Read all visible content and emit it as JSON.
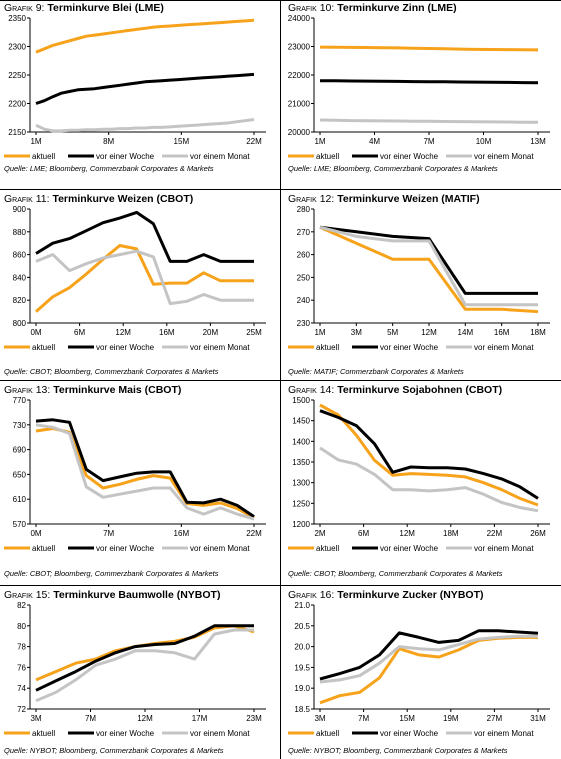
{
  "colors": {
    "aktuell": "#F7A21B",
    "woche": "#000000",
    "monat": "#C4C4C4"
  },
  "legend": {
    "aktuell": "aktuell",
    "woche": "vor einer Woche",
    "monat": "vor einem Monat"
  },
  "sources": {
    "s1": "Quelle: LME; Bloomberg, Commerzbank Corporates & Markets",
    "s2": "Quelle: CBOT; Bloomberg, Commerzbank Corporates & Markets",
    "s3": "Quelle: MATIF; Commerzbank Corporates & Markets",
    "s4": "Quelle: CBOT; Bloomberg, Commerzbank Corporates & Markets",
    "s5": "Quelle: CBOT; Bloomberg, Commerzbank Corporates & Markets",
    "s6": "Quelle: NYBOT; Bloomberg, Commerzbank Corporates & Markets",
    "s7": "Quelle: NYBOT; Bloomberg, Commerzbank Corporates & Markets"
  },
  "chart_data": [
    {
      "id": "g9",
      "type": "line",
      "title_prefix": "Grafik 9:",
      "title": "Terminkurve Blei (LME)",
      "xlabels": [
        "1M",
        "8M",
        "15M",
        "22M"
      ],
      "yticks": [
        "2350",
        "2300",
        "2250",
        "2200",
        "2150"
      ],
      "ylim": [
        2150,
        2350
      ],
      "series": [
        {
          "name": "aktuell",
          "x": [
            1,
            2,
            3,
            4,
            5,
            6,
            7,
            8,
            9,
            10,
            11,
            12,
            13,
            14,
            15,
            16,
            17,
            18,
            19,
            20,
            21,
            22,
            23,
            24,
            25,
            26,
            27
          ],
          "values": [
            2290,
            2296,
            2302,
            2306,
            2310,
            2314,
            2318,
            2320,
            2322,
            2324,
            2326,
            2328,
            2330,
            2332,
            2334,
            2335,
            2336,
            2337,
            2338,
            2339,
            2340,
            2341,
            2342,
            2343,
            2344,
            2345,
            2346
          ]
        },
        {
          "name": "vor einer Woche",
          "x": [
            1,
            2,
            3,
            4,
            5,
            6,
            7,
            8,
            9,
            10,
            11,
            12,
            13,
            14,
            15,
            16,
            17,
            18,
            19,
            20,
            21,
            22,
            23,
            24,
            25,
            26,
            27
          ],
          "values": [
            2200,
            2205,
            2212,
            2218,
            2221,
            2224,
            2225,
            2226,
            2228,
            2230,
            2232,
            2234,
            2236,
            2238,
            2239,
            2240,
            2241,
            2242,
            2243,
            2244,
            2245,
            2246,
            2247,
            2248,
            2249,
            2250,
            2251
          ]
        },
        {
          "name": "vor einem Monat",
          "x": [
            1,
            2,
            3,
            4,
            5,
            6,
            7,
            8,
            9,
            10,
            11,
            12,
            13,
            14,
            15,
            16,
            17,
            18,
            19,
            20,
            21,
            22,
            23,
            24,
            25,
            26,
            27
          ],
          "values": [
            2162,
            2155,
            2152,
            2152,
            2153,
            2153,
            2154,
            2154,
            2155,
            2155,
            2156,
            2156,
            2157,
            2157,
            2158,
            2158,
            2159,
            2160,
            2161,
            2162,
            2163,
            2164,
            2165,
            2166,
            2168,
            2170,
            2172
          ]
        }
      ]
    },
    {
      "id": "g10",
      "type": "line",
      "title_prefix": "Grafik 10:",
      "title": "Terminkurve Zinn (LME)",
      "xlabels": [
        "1M",
        "4M",
        "7M",
        "10M",
        "13M"
      ],
      "yticks": [
        "24000",
        "23000",
        "22000",
        "21000",
        "20000"
      ],
      "ylim": [
        20000,
        24000
      ],
      "series": [
        {
          "name": "aktuell",
          "x": [
            1,
            2,
            3,
            4,
            5,
            6,
            7,
            8,
            9,
            10,
            11,
            12,
            13,
            14,
            15
          ],
          "values": [
            22980,
            22975,
            22970,
            22965,
            22955,
            22950,
            22940,
            22930,
            22920,
            22910,
            22900,
            22895,
            22890,
            22885,
            22880
          ]
        },
        {
          "name": "vor einer Woche",
          "x": [
            1,
            2,
            3,
            4,
            5,
            6,
            7,
            8,
            9,
            10,
            11,
            12,
            13,
            14,
            15
          ],
          "values": [
            21800,
            21795,
            21790,
            21785,
            21780,
            21775,
            21770,
            21765,
            21760,
            21755,
            21750,
            21745,
            21740,
            21735,
            21730
          ]
        },
        {
          "name": "vor einem Monat",
          "x": [
            1,
            2,
            3,
            4,
            5,
            6,
            7,
            8,
            9,
            10,
            11,
            12,
            13,
            14,
            15
          ],
          "values": [
            20420,
            20410,
            20400,
            20395,
            20390,
            20385,
            20380,
            20375,
            20370,
            20365,
            20360,
            20355,
            20350,
            20345,
            20340
          ]
        }
      ]
    },
    {
      "id": "g11",
      "type": "line",
      "title_prefix": "Grafik 11:",
      "title": "Terminkurve Weizen (CBOT)",
      "xlabels": [
        "0M",
        "6M",
        "12M",
        "16M",
        "20M",
        "25M"
      ],
      "yticks": [
        "900",
        "880",
        "860",
        "840",
        "820",
        "800"
      ],
      "ylim": [
        800,
        900
      ],
      "series": [
        {
          "name": "aktuell",
          "x": [
            0,
            2,
            4,
            6,
            8,
            10,
            12,
            14,
            16,
            18,
            20,
            22,
            24,
            26
          ],
          "values": [
            810,
            823,
            831,
            843,
            856,
            868,
            865,
            834,
            835,
            835,
            844,
            837,
            837,
            837
          ]
        },
        {
          "name": "vor einer Woche",
          "x": [
            0,
            2,
            4,
            6,
            8,
            10,
            12,
            14,
            16,
            18,
            20,
            22,
            24,
            26
          ],
          "values": [
            861,
            870,
            874,
            881,
            888,
            892,
            897,
            887,
            854,
            854,
            860,
            854,
            854,
            854
          ]
        },
        {
          "name": "vor einem Monat",
          "x": [
            0,
            2,
            4,
            6,
            8,
            10,
            12,
            14,
            16,
            18,
            20,
            22,
            24,
            26
          ],
          "values": [
            854,
            860,
            846,
            852,
            857,
            860,
            863,
            858,
            817,
            819,
            825,
            820,
            820,
            820
          ]
        }
      ]
    },
    {
      "id": "g12",
      "type": "line",
      "title_prefix": "Grafik 12:",
      "title": "Terminkurve Weizen (MATIF)",
      "xlabels": [
        "1M",
        "3M",
        "5M",
        "12M",
        "14M",
        "16M",
        "18M"
      ],
      "yticks": [
        "280",
        "270",
        "260",
        "250",
        "240",
        "230"
      ],
      "ylim": [
        230,
        280
      ],
      "series": [
        {
          "name": "aktuell",
          "x": [
            1,
            2,
            3,
            4,
            5,
            6,
            7
          ],
          "values": [
            272,
            265,
            258,
            258,
            236,
            236,
            235
          ]
        },
        {
          "name": "vor einer Woche",
          "x": [
            1,
            2,
            3,
            4,
            5,
            6,
            7
          ],
          "values": [
            272,
            270,
            268,
            267,
            243,
            243,
            243
          ]
        },
        {
          "name": "vor einem Monat",
          "x": [
            1,
            2,
            3,
            4,
            5,
            6,
            7
          ],
          "values": [
            272,
            268,
            266,
            266,
            238,
            238,
            238
          ]
        }
      ]
    },
    {
      "id": "g13",
      "type": "line",
      "title_prefix": "Grafik 13:",
      "title": "Terminkurve Mais (CBOT)",
      "xlabels": [
        "0M",
        "7M",
        "16M",
        "22M"
      ],
      "yticks": [
        "770",
        "730",
        "690",
        "650",
        "610",
        "570"
      ],
      "ylim": [
        570,
        770
      ],
      "series": [
        {
          "name": "aktuell",
          "x": [
            0,
            2,
            4,
            6,
            8,
            10,
            12,
            14,
            16,
            18,
            20,
            22,
            24,
            26
          ],
          "values": [
            720,
            724,
            718,
            648,
            628,
            634,
            642,
            648,
            644,
            603,
            600,
            604,
            595,
            580
          ]
        },
        {
          "name": "vor einer Woche",
          "x": [
            0,
            2,
            4,
            6,
            8,
            10,
            12,
            14,
            16,
            18,
            20,
            22,
            24,
            26
          ],
          "values": [
            736,
            738,
            734,
            658,
            640,
            646,
            652,
            654,
            654,
            605,
            604,
            610,
            600,
            582
          ]
        },
        {
          "name": "vor einem Monat",
          "x": [
            0,
            2,
            4,
            6,
            8,
            10,
            12,
            14,
            16,
            18,
            20,
            22,
            24,
            26
          ],
          "values": [
            730,
            726,
            716,
            630,
            613,
            618,
            623,
            628,
            628,
            596,
            586,
            596,
            586,
            578
          ]
        }
      ]
    },
    {
      "id": "g14",
      "type": "line",
      "title_prefix": "Grafik 14:",
      "title": "Terminkurve Sojabohnen (CBOT)",
      "xlabels": [
        "2M",
        "6M",
        "12M",
        "18M",
        "22M",
        "26M"
      ],
      "yticks": [
        "1500",
        "1450",
        "1400",
        "1350",
        "1300",
        "1250",
        "1200"
      ],
      "ylim": [
        1200,
        1500
      ],
      "series": [
        {
          "name": "aktuell",
          "x": [
            2,
            4,
            6,
            8,
            10,
            12,
            14,
            16,
            18,
            20,
            22,
            24,
            26
          ],
          "values": [
            1488,
            1464,
            1415,
            1354,
            1318,
            1322,
            1320,
            1318,
            1314,
            1300,
            1283,
            1262,
            1246
          ]
        },
        {
          "name": "vor einer Woche",
          "x": [
            2,
            4,
            6,
            8,
            10,
            12,
            14,
            16,
            18,
            20,
            22,
            24,
            26
          ],
          "values": [
            1474,
            1458,
            1438,
            1394,
            1325,
            1338,
            1336,
            1336,
            1333,
            1322,
            1309,
            1290,
            1262
          ]
        },
        {
          "name": "vor einem Monat",
          "x": [
            2,
            4,
            6,
            8,
            10,
            12,
            14,
            16,
            18,
            20,
            22,
            24,
            26
          ],
          "values": [
            1384,
            1355,
            1345,
            1320,
            1283,
            1283,
            1280,
            1283,
            1288,
            1272,
            1252,
            1240,
            1232
          ]
        }
      ]
    },
    {
      "id": "g15",
      "type": "line",
      "title_prefix": "Grafik 15:",
      "title": "Terminkurve Baumwolle (NYBOT)",
      "xlabels": [
        "3M",
        "7M",
        "12M",
        "17M",
        "23M"
      ],
      "yticks": [
        "82",
        "80",
        "78",
        "76",
        "74",
        "72"
      ],
      "ylim": [
        72,
        82
      ],
      "series": [
        {
          "name": "aktuell",
          "x": [
            1,
            2,
            3,
            4,
            5,
            6,
            7,
            8,
            9,
            10,
            11,
            12
          ],
          "values": [
            74.8,
            75.6,
            76.4,
            76.8,
            77.6,
            78.0,
            78.3,
            78.5,
            78.9,
            79.8,
            80.0,
            79.4
          ]
        },
        {
          "name": "vor einer Woche",
          "x": [
            1,
            2,
            3,
            4,
            5,
            6,
            7,
            8,
            9,
            10,
            11,
            12
          ],
          "values": [
            73.8,
            74.7,
            75.6,
            76.6,
            77.4,
            78.0,
            78.2,
            78.3,
            79.0,
            80.0,
            80.0,
            80.0
          ]
        },
        {
          "name": "vor einem Monat",
          "x": [
            1,
            2,
            3,
            4,
            5,
            6,
            7,
            8,
            9,
            10,
            11,
            12
          ],
          "values": [
            72.8,
            73.6,
            74.8,
            76.2,
            76.8,
            77.6,
            77.6,
            77.4,
            76.8,
            79.2,
            79.6,
            79.6
          ]
        }
      ]
    },
    {
      "id": "g16",
      "type": "line",
      "title_prefix": "Grafik 16:",
      "title": "Terminkurve Zucker (NYBOT)",
      "xlabels": [
        "3M",
        "7M",
        "15M",
        "19M",
        "27M",
        "31M"
      ],
      "yticks": [
        "21.0",
        "20.5",
        "20.0",
        "19.5",
        "19.0",
        "18.5"
      ],
      "ylim": [
        18.5,
        21.0
      ],
      "series": [
        {
          "name": "aktuell",
          "x": [
            1,
            2,
            3,
            4,
            5,
            6,
            7,
            8,
            9,
            10,
            11,
            12
          ],
          "values": [
            18.65,
            18.82,
            18.9,
            19.25,
            19.95,
            19.8,
            19.75,
            19.92,
            20.15,
            20.2,
            20.22,
            20.22
          ]
        },
        {
          "name": "vor einer Woche",
          "x": [
            1,
            2,
            3,
            4,
            5,
            6,
            7,
            8,
            9,
            10,
            11,
            12
          ],
          "values": [
            19.22,
            19.35,
            19.5,
            19.8,
            20.33,
            20.22,
            20.1,
            20.15,
            20.38,
            20.38,
            20.35,
            20.32
          ]
        },
        {
          "name": "vor einem Monat",
          "x": [
            1,
            2,
            3,
            4,
            5,
            6,
            7,
            8,
            9,
            10,
            11,
            12
          ],
          "values": [
            19.15,
            19.2,
            19.3,
            19.6,
            20.0,
            19.95,
            19.92,
            20.05,
            20.18,
            20.22,
            20.25,
            20.25
          ]
        }
      ]
    }
  ]
}
